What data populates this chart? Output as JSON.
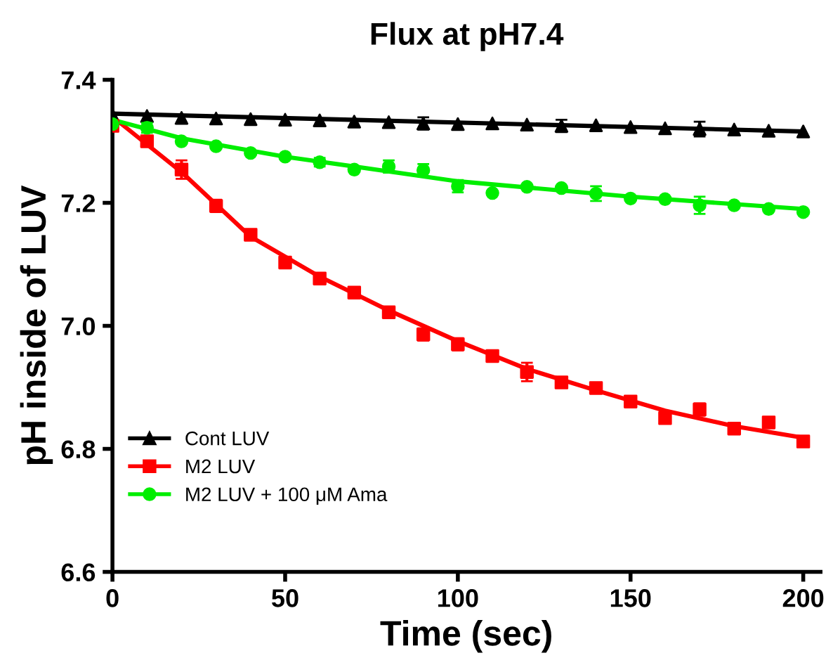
{
  "chart_data": {
    "type": "scatter",
    "title": "Flux at pH7.4",
    "xlabel": "Time (sec)",
    "ylabel": "pH inside of LUV",
    "x": [
      0,
      10,
      20,
      30,
      40,
      50,
      60,
      70,
      80,
      90,
      100,
      110,
      120,
      130,
      140,
      150,
      160,
      170,
      180,
      190,
      200
    ],
    "series": [
      {
        "name": "Cont LUV",
        "color": "#000000",
        "marker": "triangle",
        "values": [
          7.343,
          7.341,
          7.338,
          7.337,
          7.336,
          7.335,
          7.334,
          7.332,
          7.331,
          7.329,
          7.328,
          7.329,
          7.327,
          7.325,
          7.326,
          7.323,
          7.321,
          7.32,
          7.319,
          7.317,
          7.316
        ],
        "errors": [
          null,
          null,
          null,
          null,
          null,
          null,
          null,
          null,
          null,
          0.01,
          null,
          null,
          null,
          0.01,
          null,
          null,
          null,
          0.012,
          null,
          null,
          null
        ]
      },
      {
        "name": "M2 LUV",
        "color": "#ff0000",
        "marker": "square",
        "values": [
          7.325,
          7.3,
          7.254,
          7.195,
          7.148,
          7.103,
          7.077,
          7.054,
          7.022,
          6.986,
          6.97,
          6.951,
          6.925,
          6.908,
          6.899,
          6.877,
          6.85,
          6.864,
          6.833,
          6.843,
          6.812
        ],
        "errors": [
          null,
          null,
          0.015,
          0.01,
          null,
          null,
          0.008,
          null,
          null,
          0.01,
          0.01,
          null,
          0.015,
          null,
          null,
          null,
          null,
          0.01,
          null,
          null,
          null
        ]
      },
      {
        "name": "M2 LUV + 100 μM Ama",
        "color": "#00ee00",
        "marker": "circle",
        "values": [
          7.328,
          7.322,
          7.3,
          7.292,
          7.281,
          7.275,
          7.266,
          7.254,
          7.259,
          7.253,
          7.227,
          7.216,
          7.226,
          7.224,
          7.215,
          7.207,
          7.206,
          7.196,
          7.196,
          7.19,
          7.185
        ],
        "errors": [
          null,
          0.008,
          null,
          null,
          null,
          null,
          0.007,
          null,
          0.01,
          0.01,
          0.01,
          null,
          null,
          null,
          0.012,
          null,
          null,
          0.014,
          null,
          null,
          null
        ]
      },
      {
        "type": "line",
        "color": "#000000",
        "x": [
          0,
          200
        ],
        "values": [
          7.345,
          7.316
        ]
      },
      {
        "type": "line",
        "color": "#ff0000",
        "x": [
          0,
          20,
          40,
          60,
          80,
          100,
          120,
          140,
          160,
          180,
          200
        ],
        "values": [
          7.34,
          7.25,
          7.145,
          7.08,
          7.025,
          6.975,
          6.93,
          6.895,
          6.862,
          6.837,
          6.818
        ]
      },
      {
        "type": "line",
        "color": "#00ee00",
        "x": [
          0,
          20,
          50,
          100,
          150,
          200
        ],
        "values": [
          7.335,
          7.305,
          7.275,
          7.235,
          7.21,
          7.19
        ]
      }
    ],
    "xlim": [
      0,
      205
    ],
    "xticks": [
      0,
      50,
      100,
      150,
      200
    ],
    "ylim": [
      6.6,
      7.4
    ],
    "yticks": [
      6.6,
      6.8,
      {
        "value": 7,
        "label": "7.0"
      },
      7.2,
      7.4
    ],
    "grid": false,
    "legend": "bottom left"
  }
}
